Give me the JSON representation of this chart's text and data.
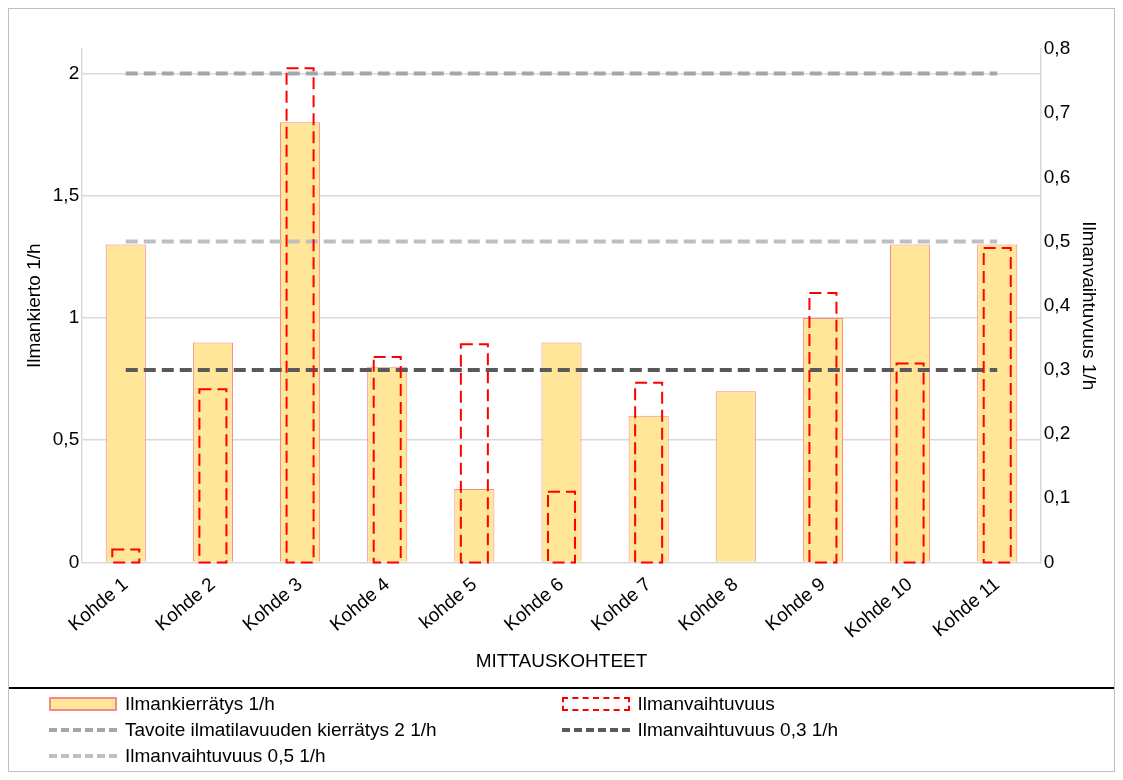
{
  "chart_data": {
    "type": "bar",
    "xlabel": "MITTAUSKOHTEET",
    "ylabel": "Ilmankierto 1/h",
    "y2label": "Ilmanvaihtuvuus 1/h",
    "categories": [
      "Kohde 1",
      "Kohde 2",
      "Kohde 3",
      "Kohde 4",
      "kohde 5",
      "Kohde 6",
      "Kohde 7",
      "Kohde 8",
      "Kohde 9",
      "Kohde 10",
      "Kohde 11"
    ],
    "series": [
      {
        "name": "Ilmankierrätys 1/h",
        "color": "#ffe699",
        "values": [
          1.3,
          0.9,
          1.8,
          0.8,
          0.3,
          0.9,
          0.6,
          0.7,
          1.0,
          1.3,
          1.3
        ]
      },
      {
        "name": "Ilmanvaihtuvuus",
        "color": "#ff0000",
        "axis": "y2",
        "line_style": "dashed",
        "values": [
          0.02,
          0.27,
          0.77,
          0.32,
          0.34,
          0.11,
          0.28,
          null,
          0.42,
          0.31,
          0.49
        ]
      }
    ],
    "ref_lines": [
      {
        "axis": "y",
        "value": 2,
        "label": "Tavoite ilmatilavuuden kierrätys 2 1/h",
        "color": "#a6a6a6",
        "line_style": "dashed"
      },
      {
        "axis": "y2",
        "value": 0.3,
        "label": "Ilmanvaihtuvuus 0,3 1/h",
        "color": "#595959",
        "line_style": "dashed"
      },
      {
        "axis": "y2",
        "value": 0.5,
        "label": "Ilmanvaihtuvuus 0,5 1/h",
        "color": "#bfbfbf",
        "line_style": "dashed"
      }
    ],
    "ylim": [
      0,
      2.1
    ],
    "yticks": [
      0,
      {
        "value": 0.5,
        "label": "0,5"
      },
      1,
      {
        "value": 1.5,
        "label": "1,5"
      },
      2
    ],
    "y2lim": [
      0,
      0.8
    ],
    "y2ticks": [
      0,
      {
        "value": 0.1,
        "label": "0,1"
      },
      {
        "value": 0.2,
        "label": "0,2"
      },
      {
        "value": 0.3,
        "label": "0,3"
      },
      {
        "value": 0.4,
        "label": "0,4"
      },
      {
        "value": 0.5,
        "label": "0,5"
      },
      {
        "value": 0.6,
        "label": "0,6"
      },
      {
        "value": 0.7,
        "label": "0,7"
      },
      {
        "value": 0.8,
        "label": "0,8"
      }
    ],
    "grid": "y",
    "legend": "bottom"
  }
}
